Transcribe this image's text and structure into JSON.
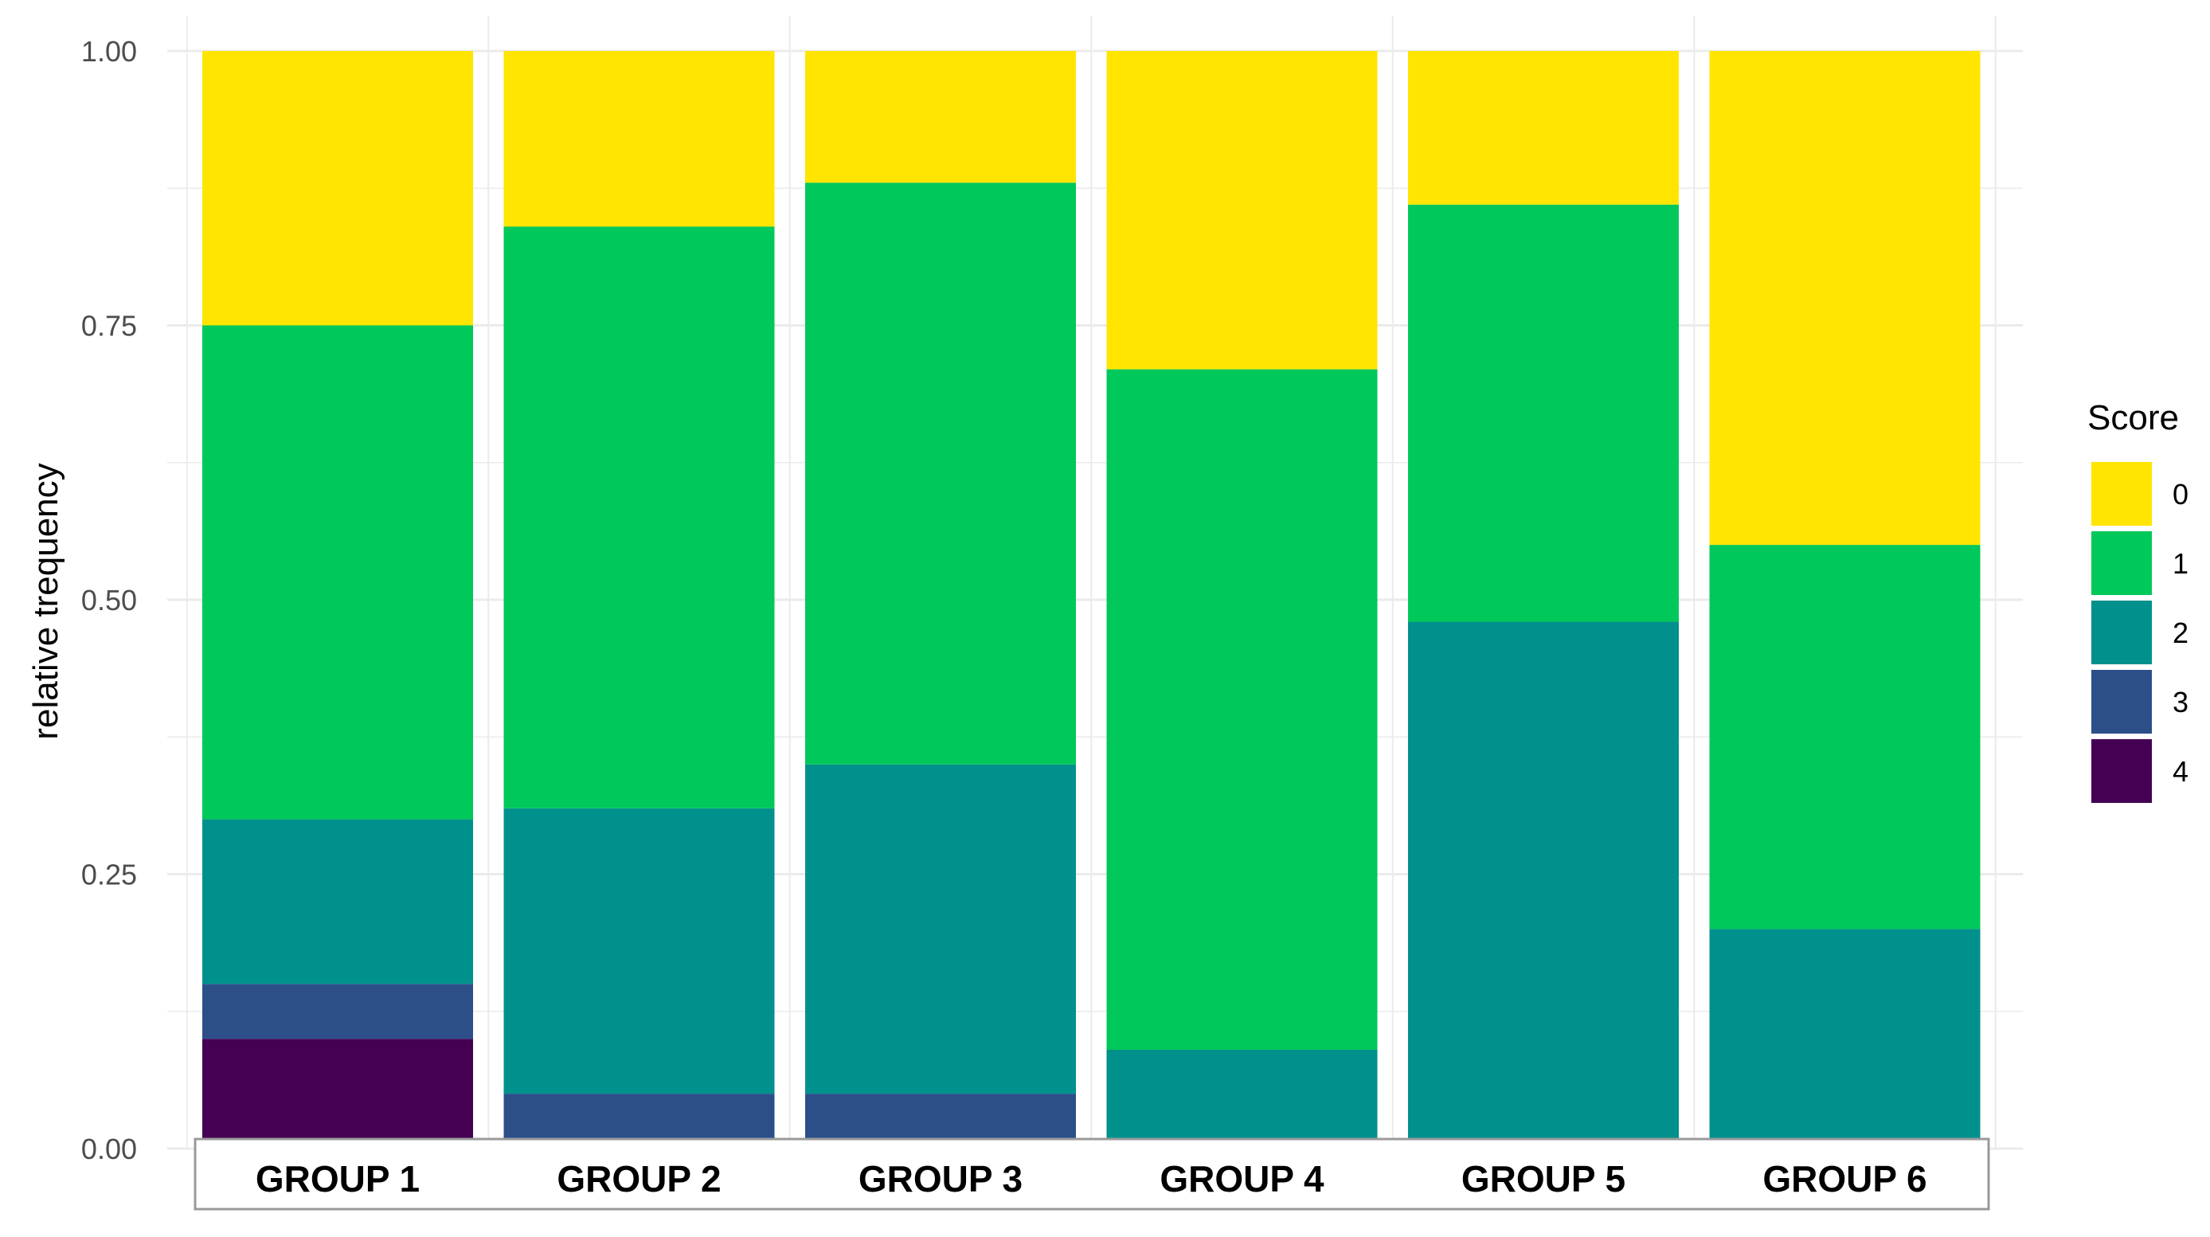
{
  "chart_data": {
    "type": "bar",
    "stacked": true,
    "title": "",
    "xlabel": "",
    "ylabel": "relative trequency",
    "ylim": [
      0,
      1
    ],
    "yticks": [
      "0.00",
      "0.25",
      "0.50",
      "0.75",
      "1.00"
    ],
    "grid": true,
    "legend": {
      "title": "Score",
      "placement": "right"
    },
    "categories": [
      "GROUP 1",
      "GROUP 2",
      "GROUP 3",
      "GROUP 4",
      "GROUP 5",
      "GROUP 6"
    ],
    "series": [
      {
        "name": "4",
        "color": "#440154",
        "values": [
          0.1,
          0.0,
          0.0,
          0.0,
          0.0,
          0.0
        ]
      },
      {
        "name": "3",
        "color": "#2c4f8a",
        "values": [
          0.05,
          0.05,
          0.05,
          0.0,
          0.0,
          0.0
        ]
      },
      {
        "name": "2",
        "color": "#00918c",
        "values": [
          0.15,
          0.26,
          0.3,
          0.09,
          0.48,
          0.2
        ]
      },
      {
        "name": "1",
        "color": "#00c85a",
        "values": [
          0.45,
          0.53,
          0.53,
          0.62,
          0.38,
          0.35
        ]
      },
      {
        "name": "0",
        "color": "#ffe500",
        "values": [
          0.25,
          0.16,
          0.12,
          0.29,
          0.14,
          0.45
        ]
      }
    ],
    "legend_order": [
      "0",
      "1",
      "2",
      "3",
      "4"
    ]
  }
}
